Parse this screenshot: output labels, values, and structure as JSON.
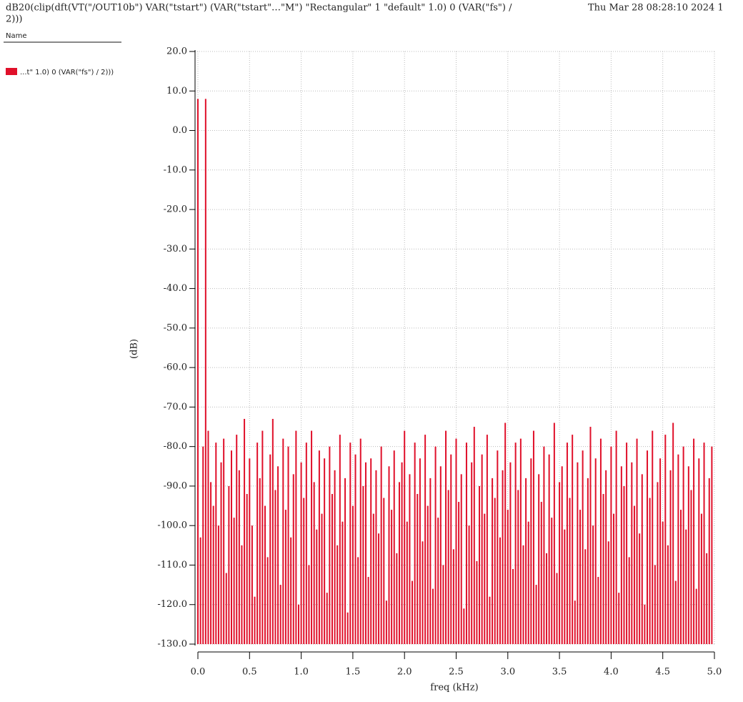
{
  "chart_data": {
    "type": "bar",
    "title": "dB20(clip(dft(VT(\"/OUT10b\") VAR(\"tstart\") (VAR(\"tstart\"…\"M\") \"Rectangular\" 1 \"default\" 1.0) 0 (VAR(\"fs\") /",
    "title_line2": "2)))",
    "timestamp": "Thu Mar 28 08:28:10 2024  1",
    "legend_header": "Name",
    "xlabel": "freq (kHz)",
    "ylabel": "(dB)",
    "grid": true,
    "series": [
      {
        "name": "...t\" 1.0) 0 (VAR(\"fs\") / 2)))",
        "color": "#e0102a",
        "values": [
          8,
          -103,
          -80,
          8,
          -76,
          -89,
          -95,
          -79,
          -100,
          -84,
          -78,
          -112,
          -90,
          -81,
          -98,
          -77,
          -86,
          -105,
          -73,
          -92,
          -83,
          -100,
          -118,
          -79,
          -88,
          -76,
          -95,
          -108,
          -82,
          -73,
          -91,
          -85,
          -115,
          -78,
          -96,
          -80,
          -103,
          -87,
          -76,
          -120,
          -84,
          -93,
          -79,
          -110,
          -76,
          -89,
          -101,
          -81,
          -97,
          -83,
          -117,
          -80,
          -92,
          -86,
          -105,
          -77,
          -99,
          -88,
          -122,
          -79,
          -95,
          -82,
          -108,
          -78,
          -90,
          -84,
          -113,
          -83,
          -97,
          -86,
          -102,
          -80,
          -93,
          -119,
          -85,
          -96,
          -81,
          -107,
          -89,
          -84,
          -76,
          -99,
          -87,
          -114,
          -79,
          -92,
          -83,
          -104,
          -77,
          -95,
          -88,
          -116,
          -80,
          -98,
          -85,
          -110,
          -76,
          -91,
          -82,
          -106,
          -78,
          -94,
          -87,
          -121,
          -79,
          -100,
          -84,
          -75,
          -109,
          -90,
          -82,
          -97,
          -77,
          -118,
          -88,
          -93,
          -81,
          -103,
          -86,
          -74,
          -96,
          -84,
          -111,
          -79,
          -91,
          -78,
          -105,
          -88,
          -99,
          -83,
          -76,
          -115,
          -87,
          -94,
          -80,
          -107,
          -82,
          -98,
          -74,
          -112,
          -89,
          -85,
          -101,
          -79,
          -93,
          -77,
          -119,
          -84,
          -96,
          -81,
          -106,
          -88,
          -75,
          -100,
          -83,
          -113,
          -78,
          -92,
          -86,
          -104,
          -80,
          -97,
          -76,
          -117,
          -85,
          -90,
          -79,
          -108,
          -84,
          -95,
          -78,
          -102,
          -87,
          -120,
          -81,
          -93,
          -76,
          -110,
          -89,
          -83,
          -99,
          -77,
          -105,
          -86,
          -74,
          -114,
          -82,
          -96,
          -80,
          -101,
          -85,
          -91,
          -78,
          -116,
          -83,
          -97,
          -79,
          -107,
          -88,
          -80
        ]
      }
    ],
    "x": [
      0,
      0.025,
      0.05,
      0.075,
      0.1,
      0.125,
      0.15,
      0.175,
      0.2,
      0.225,
      0.25,
      0.275,
      0.3,
      0.325,
      0.35,
      0.375,
      0.4,
      0.425,
      0.45,
      0.475,
      0.5,
      0.525,
      0.55,
      0.575,
      0.6,
      0.625,
      0.65,
      0.675,
      0.7,
      0.725,
      0.75,
      0.775,
      0.8,
      0.825,
      0.85,
      0.875,
      0.9,
      0.925,
      0.95,
      0.975,
      1,
      1.025,
      1.05,
      1.075,
      1.1,
      1.125,
      1.15,
      1.175,
      1.2,
      1.225,
      1.25,
      1.275,
      1.3,
      1.325,
      1.35,
      1.375,
      1.4,
      1.425,
      1.45,
      1.475,
      1.5,
      1.525,
      1.55,
      1.575,
      1.6,
      1.625,
      1.65,
      1.675,
      1.7,
      1.725,
      1.75,
      1.775,
      1.8,
      1.825,
      1.85,
      1.875,
      1.9,
      1.925,
      1.95,
      1.975,
      2,
      2.025,
      2.05,
      2.075,
      2.1,
      2.125,
      2.15,
      2.175,
      2.2,
      2.225,
      2.25,
      2.275,
      2.3,
      2.325,
      2.35,
      2.375,
      2.4,
      2.425,
      2.45,
      2.475,
      2.5,
      2.525,
      2.55,
      2.575,
      2.6,
      2.625,
      2.65,
      2.675,
      2.7,
      2.725,
      2.75,
      2.775,
      2.8,
      2.825,
      2.85,
      2.875,
      2.9,
      2.925,
      2.95,
      2.975,
      3,
      3.025,
      3.05,
      3.075,
      3.1,
      3.125,
      3.15,
      3.175,
      3.2,
      3.225,
      3.25,
      3.275,
      3.3,
      3.325,
      3.35,
      3.375,
      3.4,
      3.425,
      3.45,
      3.475,
      3.5,
      3.525,
      3.55,
      3.575,
      3.6,
      3.625,
      3.65,
      3.675,
      3.7,
      3.725,
      3.75,
      3.775,
      3.8,
      3.825,
      3.85,
      3.875,
      3.9,
      3.925,
      3.95,
      3.975,
      4,
      4.025,
      4.05,
      4.075,
      4.1,
      4.125,
      4.15,
      4.175,
      4.2,
      4.225,
      4.25,
      4.275,
      4.3,
      4.325,
      4.35,
      4.375,
      4.4,
      4.425,
      4.45,
      4.475,
      4.5,
      4.525,
      4.55,
      4.575,
      4.6,
      4.625,
      4.65,
      4.675,
      4.7,
      4.725,
      4.75,
      4.775,
      4.8,
      4.825,
      4.85,
      4.875,
      4.9,
      4.925,
      4.95,
      4.975
    ],
    "xlim": [
      0,
      5
    ],
    "xticks": [
      {
        "value": 0,
        "label": "0.0"
      },
      0.5,
      {
        "value": 1,
        "label": "1.0"
      },
      1.5,
      {
        "value": 2,
        "label": "2.0"
      },
      2.5,
      {
        "value": 3,
        "label": "3.0"
      },
      3.5,
      {
        "value": 4,
        "label": "4.0"
      },
      4.5,
      {
        "value": 5,
        "label": "5.0"
      }
    ],
    "ylim": [
      -130,
      20
    ],
    "yticks": [
      {
        "value": -130,
        "label": "-130.0"
      },
      {
        "value": -120,
        "label": "-120.0"
      },
      {
        "value": -110,
        "label": "-110.0"
      },
      {
        "value": -100,
        "label": "-100.0"
      },
      {
        "value": -90,
        "label": "-90.0"
      },
      {
        "value": -80,
        "label": "-80.0"
      },
      {
        "value": -70,
        "label": "-70.0"
      },
      {
        "value": -60,
        "label": "-60.0"
      },
      {
        "value": -50,
        "label": "-50.0"
      },
      {
        "value": -40,
        "label": "-40.0"
      },
      {
        "value": -30,
        "label": "-30.0"
      },
      {
        "value": -20,
        "label": "-20.0"
      },
      {
        "value": -10,
        "label": "-10.0"
      },
      {
        "value": 0,
        "label": "0.0"
      },
      {
        "value": 10,
        "label": "10.0"
      },
      {
        "value": 20,
        "label": "20.0"
      }
    ]
  }
}
